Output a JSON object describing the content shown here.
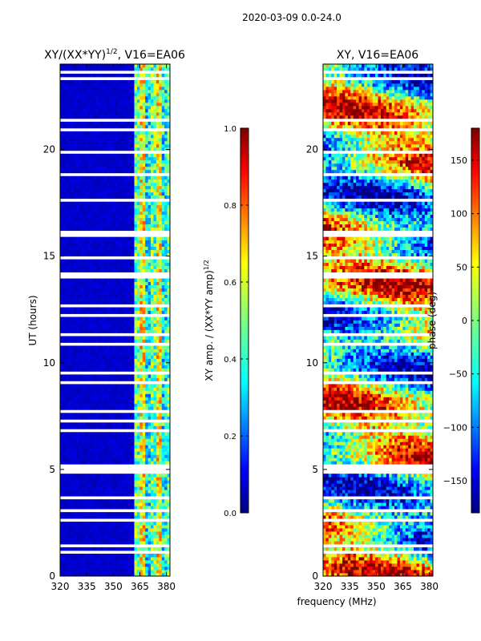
{
  "suptitle": "2020-03-09 0.0-24.0",
  "chart_data": [
    {
      "type": "heatmap",
      "title": "XY/(XX*YY)",
      "title_sup": "1/2",
      "title_suffix": ", V16=EA06",
      "xlabel": "frequency (MHz)",
      "ylabel": "UT (hours)",
      "xlim": [
        320,
        382
      ],
      "ylim": [
        0,
        24
      ],
      "xticks": [
        320,
        335,
        350,
        365,
        380
      ],
      "yticks": [
        0,
        5,
        10,
        15,
        20
      ],
      "colorbar": {
        "label": "XY amp. / (XX*YY amp)",
        "label_sup": "1/2",
        "range": [
          0.0,
          1.0
        ],
        "ticks": [
          "0.0",
          "0.2",
          "0.4",
          "0.6",
          "0.8",
          "1.0"
        ]
      },
      "colormap": "jet",
      "description_values": {
        "low_band_value": 0.05,
        "high_band_start_mhz": 361,
        "high_band_value_range": [
          0.2,
          0.8
        ]
      }
    },
    {
      "type": "heatmap",
      "title": "XY, V16=EA06",
      "xlabel": "frequency (MHz)",
      "ylabel": "",
      "xlim": [
        320,
        382
      ],
      "ylim": [
        0,
        24
      ],
      "xticks": [
        320,
        335,
        350,
        365,
        380
      ],
      "yticks": [
        0,
        5,
        10,
        15,
        20
      ],
      "colorbar": {
        "label": "phase (deg)",
        "range": [
          -180,
          180
        ],
        "ticks": [
          "−150",
          "−100",
          "−50",
          "0",
          "50",
          "100",
          "150"
        ]
      },
      "colormap": "jet"
    }
  ],
  "shared_xlabel": "frequency (MHz)",
  "colors": {
    "jet_dark_blue": "#00007f",
    "jet_red": "#7f0000",
    "gap_white": "#ffffff"
  }
}
